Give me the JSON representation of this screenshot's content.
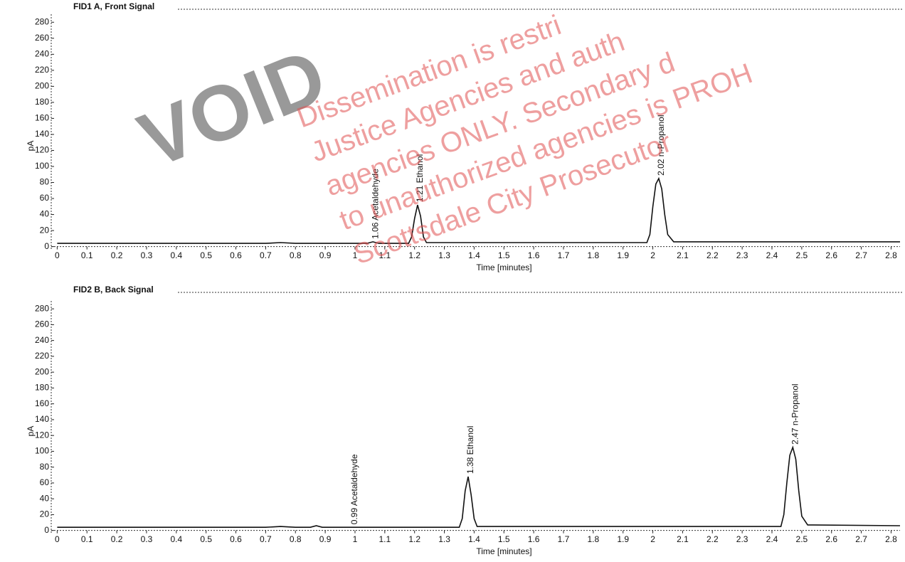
{
  "chart_data": [
    {
      "type": "line",
      "title": "FID1 A, Front Signal",
      "x_label": "Time [minutes]",
      "y_label": "pA",
      "xlim": [
        -0.02,
        2.83
      ],
      "ylim": [
        -3,
        290
      ],
      "xticks": [
        0,
        0.1,
        0.2,
        0.3,
        0.4,
        0.5,
        0.6,
        0.7,
        0.8,
        0.9,
        1,
        1.1,
        1.2,
        1.3,
        1.4,
        1.5,
        1.6,
        1.7,
        1.8,
        1.9,
        2,
        2.1,
        2.2,
        2.3,
        2.4,
        2.5,
        2.6,
        2.7,
        2.8
      ],
      "yticks": [
        0,
        20,
        40,
        60,
        80,
        100,
        120,
        140,
        160,
        180,
        200,
        220,
        240,
        260,
        280
      ],
      "grid": false,
      "series": [
        {
          "color": "#111111",
          "x": [
            0,
            0.5,
            0.7,
            0.75,
            0.8,
            1.0,
            1.04,
            1.06,
            1.08,
            1.18,
            1.19,
            1.2,
            1.21,
            1.22,
            1.23,
            1.24,
            1.5,
            1.98,
            1.99,
            2.0,
            2.01,
            2.02,
            2.03,
            2.04,
            2.05,
            2.07,
            2.5,
            2.83
          ],
          "values": [
            4,
            4,
            4,
            5,
            4,
            4,
            4,
            6,
            4,
            4,
            12,
            35,
            52,
            38,
            12,
            5,
            5,
            5,
            15,
            50,
            78,
            85,
            72,
            40,
            15,
            6,
            6,
            6
          ]
        }
      ],
      "annotations": [
        {
          "text": "1.06  Acetaldehyde",
          "x": 1.06,
          "y": 6
        },
        {
          "text": "1.21  Ethanol",
          "x": 1.21,
          "y": 52
        },
        {
          "text": "2.02  n-Propanol",
          "x": 2.02,
          "y": 85
        }
      ]
    },
    {
      "type": "line",
      "title": "FID2 B, Back Signal",
      "x_label": "Time [minutes]",
      "y_label": "pA",
      "xlim": [
        -0.02,
        2.83
      ],
      "ylim": [
        -3,
        290
      ],
      "xticks": [
        0,
        0.1,
        0.2,
        0.3,
        0.4,
        0.5,
        0.6,
        0.7,
        0.8,
        0.9,
        1,
        1.1,
        1.2,
        1.3,
        1.4,
        1.5,
        1.6,
        1.7,
        1.8,
        1.9,
        2,
        2.1,
        2.2,
        2.3,
        2.4,
        2.5,
        2.6,
        2.7,
        2.8
      ],
      "yticks": [
        0,
        20,
        40,
        60,
        80,
        100,
        120,
        140,
        160,
        180,
        200,
        220,
        240,
        260,
        280
      ],
      "grid": false,
      "series": [
        {
          "color": "#111111",
          "x": [
            0,
            0.7,
            0.75,
            0.8,
            0.85,
            0.87,
            0.89,
            0.95,
            0.99,
            1.05,
            1.35,
            1.36,
            1.37,
            1.38,
            1.39,
            1.4,
            1.41,
            1.7,
            2.43,
            2.44,
            2.45,
            2.46,
            2.47,
            2.48,
            2.49,
            2.5,
            2.52,
            2.83
          ],
          "values": [
            4,
            4,
            5,
            4,
            4,
            6,
            4,
            4,
            4,
            4,
            4,
            15,
            50,
            68,
            45,
            15,
            5,
            5,
            5,
            20,
            60,
            95,
            105,
            90,
            50,
            18,
            7,
            6
          ]
        }
      ],
      "annotations": [
        {
          "text": "0.99  Acetaldehyde",
          "x": 0.99,
          "y": 4
        },
        {
          "text": "1.38  Ethanol",
          "x": 1.38,
          "y": 68
        },
        {
          "text": "2.47  n-Propanol",
          "x": 2.47,
          "y": 105
        }
      ]
    }
  ],
  "watermark": {
    "stamp": "VOID",
    "lines": [
      "Dissemination is restri",
      "Justice Agencies and auth",
      "agencies ONLY. Secondary d",
      "to unauthorized agencies is PROH",
      "Scottsdale City Prosecutor"
    ]
  }
}
